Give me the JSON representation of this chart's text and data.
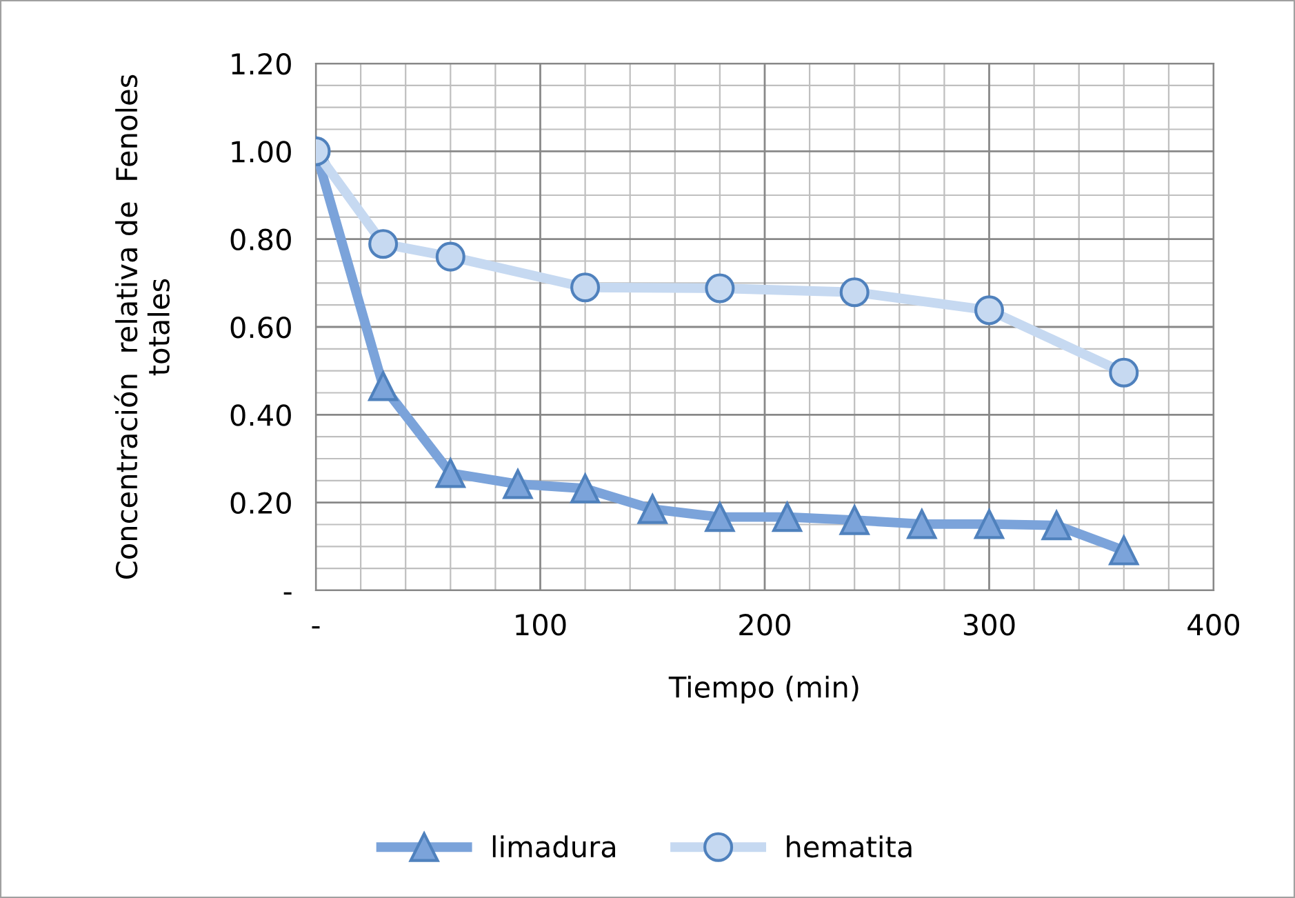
{
  "chart_data": {
    "type": "line",
    "xlabel": "Tiempo (min)",
    "ylabel": "Concentración  relativa de  Fenoles\ntotales",
    "xlim": [
      0,
      400
    ],
    "xticks": [
      {
        "value": 0,
        "label": "-"
      },
      100,
      200,
      300,
      400
    ],
    "ylim": [
      0,
      1.2
    ],
    "yticks": [
      {
        "value": 0,
        "label": "-"
      },
      {
        "value": 0.2,
        "label": "0.20"
      },
      {
        "value": 0.4,
        "label": "0.40"
      },
      {
        "value": 0.6,
        "label": "0.60"
      },
      {
        "value": 0.8,
        "label": "0.80"
      },
      {
        "value": 1.0,
        "label": "1.00"
      },
      {
        "value": 1.2,
        "label": "1.20"
      }
    ],
    "grid": true,
    "legend": "bottom",
    "series": [
      {
        "name": "limadura",
        "color": "#7ba3da",
        "marker": "triangle",
        "x": [
          0,
          30,
          60,
          90,
          120,
          150,
          180,
          210,
          240,
          270,
          300,
          330,
          360
        ],
        "values": [
          1.0,
          0.465,
          0.267,
          0.242,
          0.232,
          0.185,
          0.167,
          0.167,
          0.16,
          0.151,
          0.151,
          0.148,
          0.091
        ]
      },
      {
        "name": "hematita",
        "color": "#c6d9f1",
        "marker": "circle",
        "x": [
          0,
          30,
          60,
          120,
          180,
          240,
          300,
          360
        ],
        "values": [
          1.0,
          0.789,
          0.76,
          0.69,
          0.688,
          0.679,
          0.638,
          0.496
        ]
      }
    ]
  }
}
